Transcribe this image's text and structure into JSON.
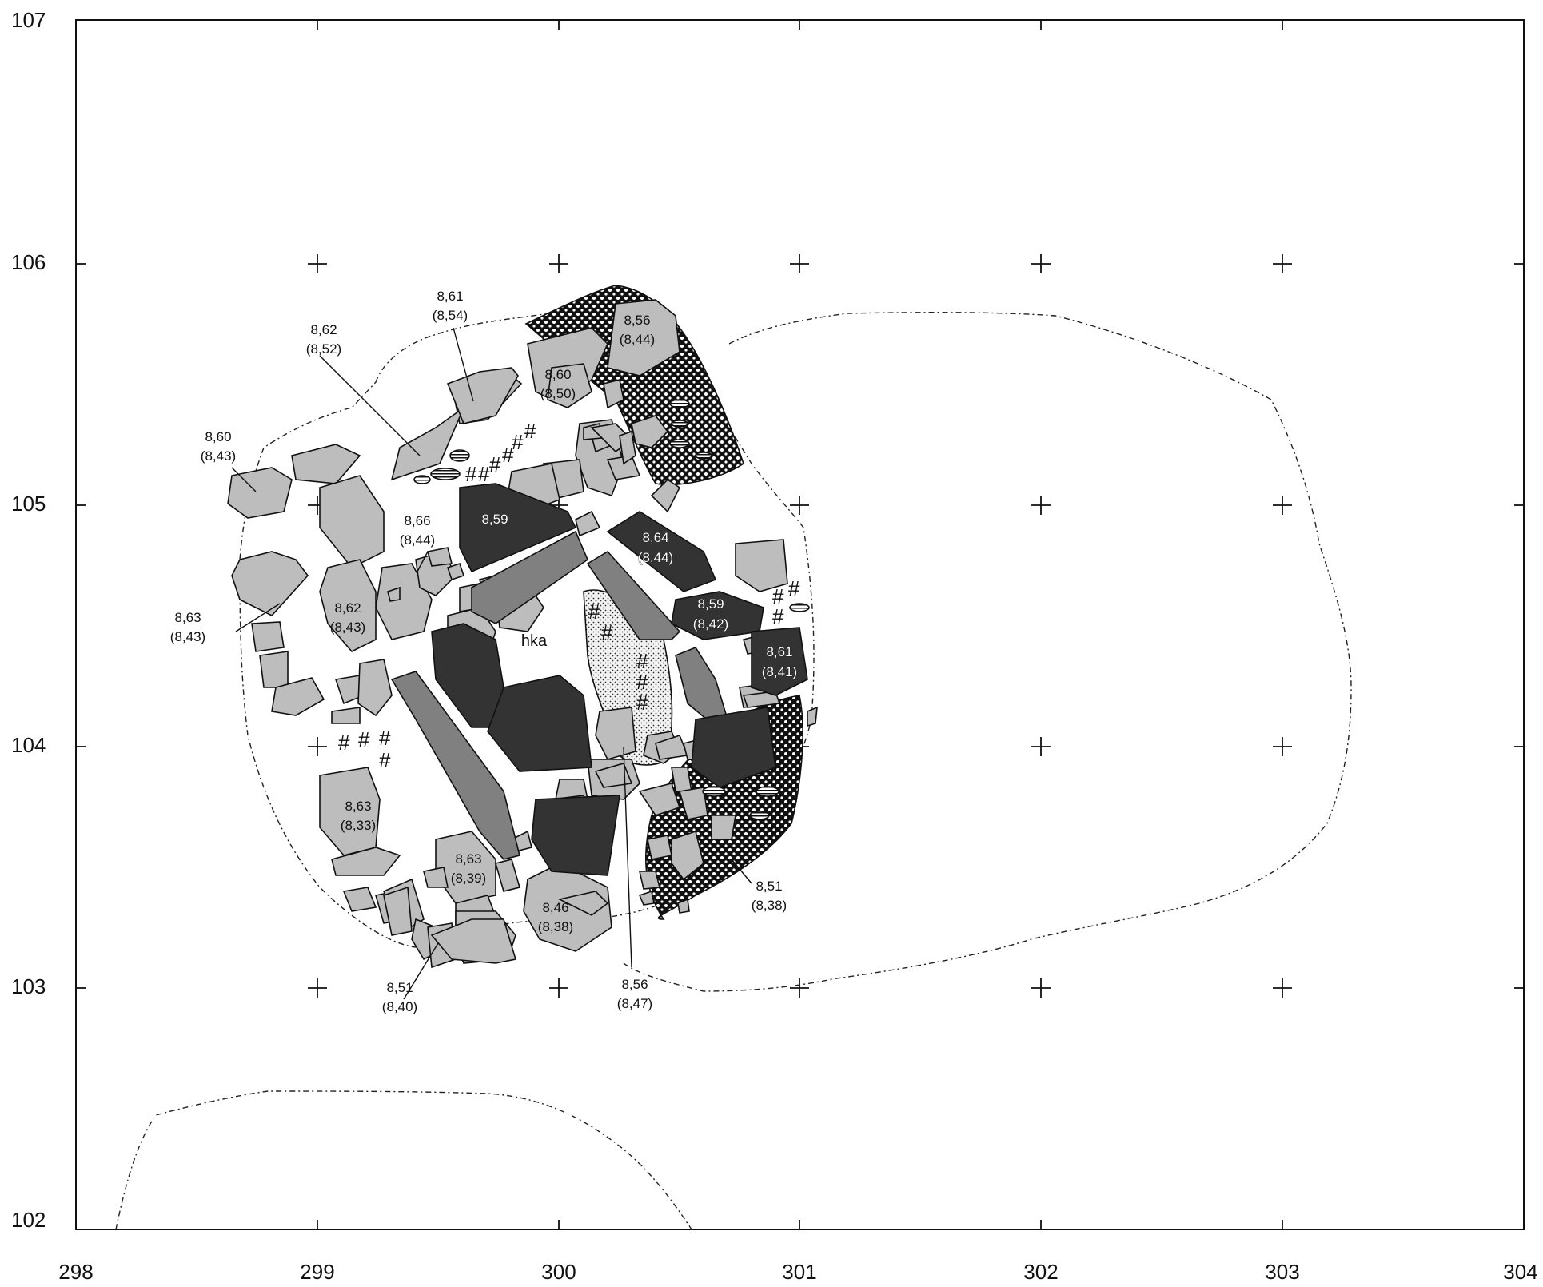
{
  "x_ticks": [
    "298",
    "299",
    "300",
    "301",
    "302",
    "303",
    "304"
  ],
  "y_ticks": [
    "107",
    "106",
    "105",
    "104",
    "103",
    "102"
  ],
  "colors": {
    "light_stone": "#bdbdbd",
    "mid_stone": "#808080",
    "dark_stone": "#333333",
    "ink": "#111111"
  },
  "annotation": "hka",
  "hash_mark": "#",
  "elevations": [
    {
      "a": "8,61",
      "b": "(8,54)"
    },
    {
      "a": "8,62",
      "b": "(8,52)"
    },
    {
      "a": "8,60",
      "b": "(8,43)"
    },
    {
      "a": "8,66",
      "b": "(8,44)"
    },
    {
      "a": "8,63",
      "b": "(8,43)"
    },
    {
      "a": "8,62",
      "b": "(8,43)"
    },
    {
      "a": "8,63",
      "b": "(8,33)"
    },
    {
      "a": "8,63",
      "b": "(8,39)"
    },
    {
      "a": "8,51",
      "b": "(8,40)"
    },
    {
      "a": "8,46",
      "b": "(8,38)"
    },
    {
      "a": "8,56",
      "b": "(8,47)"
    },
    {
      "a": "8,51",
      "b": "(8,38)"
    },
    {
      "a": "8,56",
      "b": "(8,44)"
    },
    {
      "a": "8,60",
      "b": "(8,50)"
    },
    {
      "a": "8,64",
      "b": "(8,44)"
    },
    {
      "a": "8,59",
      "b": "(8,42)"
    },
    {
      "a": "8,61",
      "b": "(8,41)"
    },
    {
      "a": "8,59",
      "b": ""
    }
  ]
}
